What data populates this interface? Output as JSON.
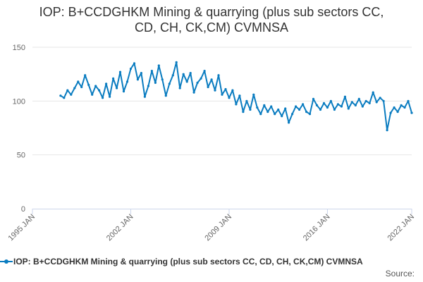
{
  "colors": {
    "series": "#0a7cc0",
    "grid": "#e6e6e6",
    "axis": "#ccd6eb",
    "text": "#333333",
    "tick_text": "#666666"
  },
  "footer": {
    "source_label": "Source:"
  },
  "chart_data": {
    "type": "line",
    "title": "IOP: B+CCDGHKM Mining & quarrying (plus sub sectors CC, CD, CH, CK,CM) CVMNSA",
    "title_lines": [
      "IOP: B+CCDGHKM Mining & quarrying (plus sub sectors CC,",
      "CD, CH, CK,CM) CVMNSA"
    ],
    "xlabel": "",
    "ylabel": "",
    "x_ticks": [
      "1995 JAN",
      "2002 JAN",
      "2009 JAN",
      "2016 JAN",
      "2022 JAN"
    ],
    "x_range": [
      "1995-01",
      "2022-01"
    ],
    "y_ticks": [
      0,
      50,
      100,
      150
    ],
    "ylim": [
      0,
      150
    ],
    "grid": true,
    "legend": "bottom",
    "series": [
      {
        "name": "IOP: B+CCDGHKM Mining & quarrying (plus sub sectors CC, CD, CH, CK,CM) CVMNSA",
        "points": [
          [
            "1997-01",
            105
          ],
          [
            "1997-04",
            103
          ],
          [
            "1997-07",
            110
          ],
          [
            "1997-10",
            106
          ],
          [
            "1998-01",
            112
          ],
          [
            "1998-04",
            118
          ],
          [
            "1998-07",
            113
          ],
          [
            "1998-10",
            124
          ],
          [
            "1999-01",
            115
          ],
          [
            "1999-04",
            106
          ],
          [
            "1999-07",
            114
          ],
          [
            "1999-10",
            110
          ],
          [
            "2000-01",
            103
          ],
          [
            "2000-04",
            116
          ],
          [
            "2000-07",
            104
          ],
          [
            "2000-10",
            121
          ],
          [
            "2001-01",
            112
          ],
          [
            "2001-04",
            127
          ],
          [
            "2001-07",
            109
          ],
          [
            "2001-10",
            118
          ],
          [
            "2002-01",
            130
          ],
          [
            "2002-04",
            135
          ],
          [
            "2002-07",
            120
          ],
          [
            "2002-10",
            126
          ],
          [
            "2003-01",
            104
          ],
          [
            "2003-04",
            114
          ],
          [
            "2003-07",
            128
          ],
          [
            "2003-10",
            117
          ],
          [
            "2004-01",
            133
          ],
          [
            "2004-04",
            120
          ],
          [
            "2004-07",
            105
          ],
          [
            "2004-10",
            116
          ],
          [
            "2005-01",
            124
          ],
          [
            "2005-04",
            136
          ],
          [
            "2005-07",
            112
          ],
          [
            "2005-10",
            125
          ],
          [
            "2006-01",
            118
          ],
          [
            "2006-04",
            126
          ],
          [
            "2006-07",
            108
          ],
          [
            "2006-10",
            117
          ],
          [
            "2007-01",
            121
          ],
          [
            "2007-04",
            128
          ],
          [
            "2007-07",
            113
          ],
          [
            "2007-10",
            120
          ],
          [
            "2008-01",
            110
          ],
          [
            "2008-04",
            124
          ],
          [
            "2008-07",
            106
          ],
          [
            "2008-10",
            111
          ],
          [
            "2009-01",
            103
          ],
          [
            "2009-04",
            110
          ],
          [
            "2009-07",
            97
          ],
          [
            "2009-10",
            105
          ],
          [
            "2010-01",
            90
          ],
          [
            "2010-04",
            100
          ],
          [
            "2010-07",
            92
          ],
          [
            "2010-10",
            106
          ],
          [
            "2011-01",
            94
          ],
          [
            "2011-04",
            88
          ],
          [
            "2011-07",
            96
          ],
          [
            "2011-10",
            90
          ],
          [
            "2012-01",
            95
          ],
          [
            "2012-04",
            88
          ],
          [
            "2012-07",
            92
          ],
          [
            "2012-10",
            86
          ],
          [
            "2013-01",
            93
          ],
          [
            "2013-04",
            80
          ],
          [
            "2013-07",
            88
          ],
          [
            "2013-10",
            95
          ],
          [
            "2014-01",
            92
          ],
          [
            "2014-04",
            97
          ],
          [
            "2014-07",
            90
          ],
          [
            "2014-10",
            88
          ],
          [
            "2015-01",
            102
          ],
          [
            "2015-04",
            96
          ],
          [
            "2015-07",
            92
          ],
          [
            "2015-10",
            98
          ],
          [
            "2016-01",
            94
          ],
          [
            "2016-04",
            100
          ],
          [
            "2016-07",
            92
          ],
          [
            "2016-10",
            97
          ],
          [
            "2017-01",
            95
          ],
          [
            "2017-04",
            104
          ],
          [
            "2017-07",
            93
          ],
          [
            "2017-10",
            99
          ],
          [
            "2018-01",
            96
          ],
          [
            "2018-04",
            102
          ],
          [
            "2018-07",
            95
          ],
          [
            "2018-10",
            100
          ],
          [
            "2019-01",
            98
          ],
          [
            "2019-04",
            108
          ],
          [
            "2019-07",
            99
          ],
          [
            "2019-10",
            103
          ],
          [
            "2020-01",
            100
          ],
          [
            "2020-04",
            73
          ],
          [
            "2020-07",
            89
          ],
          [
            "2020-10",
            94
          ],
          [
            "2021-01",
            90
          ],
          [
            "2021-04",
            96
          ],
          [
            "2021-07",
            94
          ],
          [
            "2021-10",
            100
          ],
          [
            "2022-01",
            89
          ]
        ]
      }
    ]
  }
}
